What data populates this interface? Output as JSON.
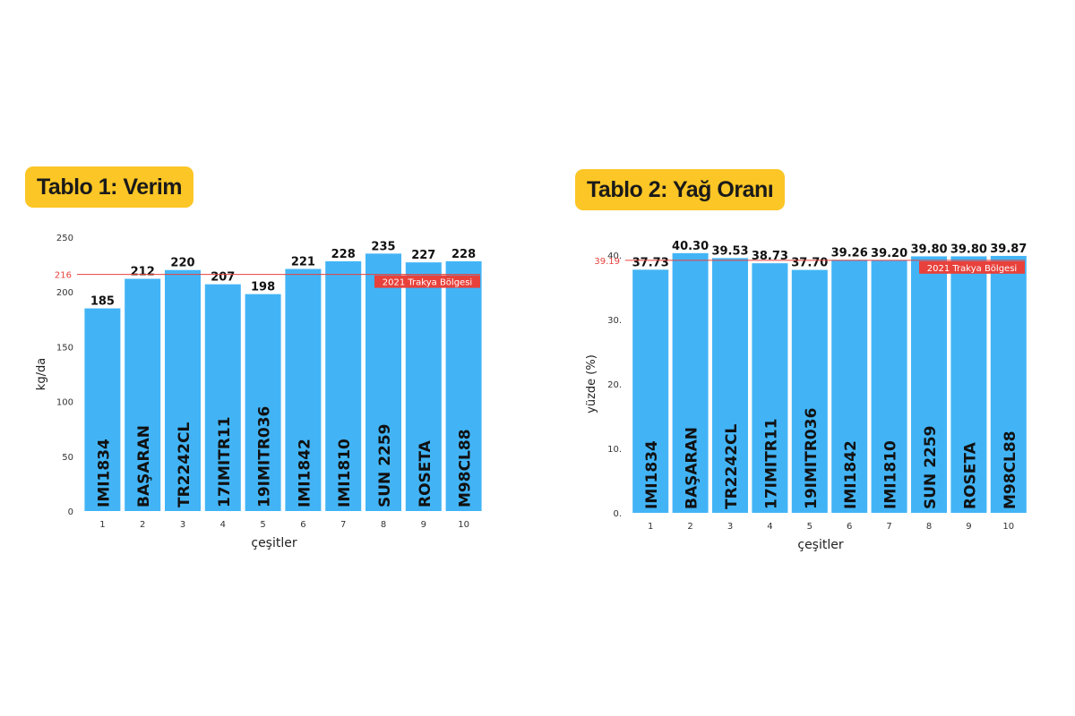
{
  "chart_data": [
    {
      "type": "bar",
      "title": "Tablo 1: Verim",
      "xlabel": "çeşitler",
      "ylabel": "kg/da",
      "ylim": [
        0,
        250
      ],
      "yticks": [
        0,
        50,
        100,
        150,
        200,
        250
      ],
      "categories": [
        "1",
        "2",
        "3",
        "4",
        "5",
        "6",
        "7",
        "8",
        "9",
        "10"
      ],
      "bar_labels": [
        "IMI1834",
        "BAŞARAN",
        "TR2242CL",
        "17IMITR11",
        "19IMITR036",
        "IMI1842",
        "IMI1810",
        "SUN 2259",
        "ROSETA",
        "M98CL88"
      ],
      "values": [
        185,
        212,
        220,
        207,
        198,
        221,
        228,
        235,
        227,
        228
      ],
      "value_labels": [
        "185",
        "212",
        "220",
        "207",
        "198",
        "221",
        "228",
        "235",
        "227",
        "228"
      ],
      "reference": {
        "value": 216,
        "value_label": "216",
        "label": "2021 Trakya Bölgesi"
      },
      "bar_color": "#42b4f6",
      "reference_color": "#e8413b",
      "grid": false
    },
    {
      "type": "bar",
      "title": "Tablo 2: Yağ Oranı",
      "xlabel": "çeşitler",
      "ylabel": "yüzde (%)",
      "ylim": [
        0,
        40
      ],
      "yticks": [
        0,
        10,
        20,
        30,
        40
      ],
      "ytick_labels": [
        "0.",
        "10.",
        "20.",
        "30.",
        "40."
      ],
      "categories": [
        "1",
        "2",
        "3",
        "4",
        "5",
        "6",
        "7",
        "8",
        "9",
        "10"
      ],
      "bar_labels": [
        "IMI1834",
        "BAŞARAN",
        "TR2242CL",
        "17IMITR11",
        "19IMITR036",
        "IMI1842",
        "IMI1810",
        "SUN 2259",
        "ROSETA",
        "M98CL88"
      ],
      "values": [
        37.73,
        40.3,
        39.53,
        38.73,
        37.7,
        39.26,
        39.2,
        39.8,
        39.8,
        39.87
      ],
      "value_labels": [
        "37.73",
        "40.30",
        "39.53",
        "38.73",
        "37.70",
        "39.26",
        "39.20",
        "39.80",
        "39.80",
        "39.87"
      ],
      "reference": {
        "value": 39.19,
        "value_label": "39.19",
        "label": "2021 Trakya Bölgesi"
      },
      "bar_color": "#42b4f6",
      "reference_color": "#e8413b",
      "grid": false
    }
  ]
}
